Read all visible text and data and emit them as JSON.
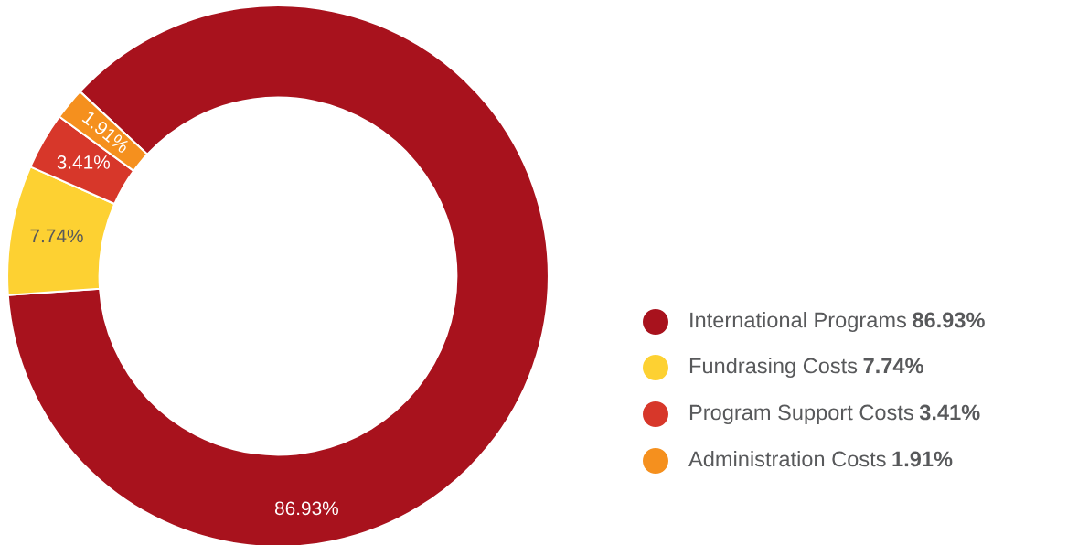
{
  "chart_data": {
    "type": "donut",
    "categories": [
      "International Programs",
      "Fundrasing Costs",
      "Program Support Costs",
      "Administration Costs"
    ],
    "values": [
      86.93,
      7.74,
      3.41,
      1.91
    ],
    "colors": [
      "#a8121d",
      "#fdd132",
      "#d7372a",
      "#f5901e"
    ],
    "value_labels": [
      "86.93%",
      "7.74%",
      "3.41%",
      "1.91%"
    ],
    "legend": "right"
  }
}
